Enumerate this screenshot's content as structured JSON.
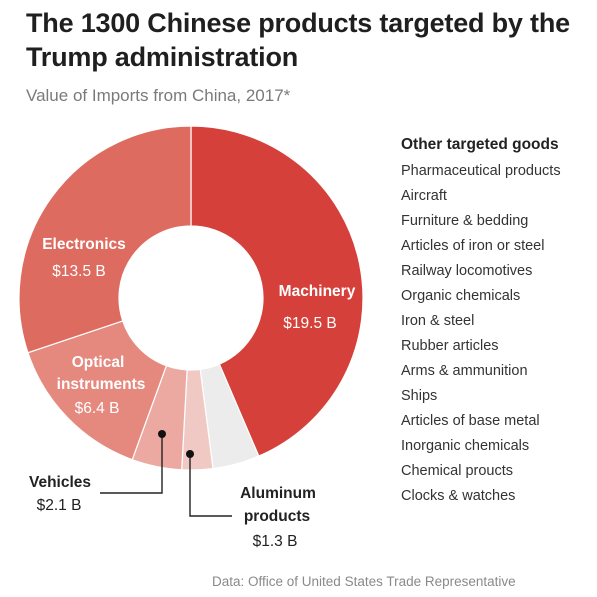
{
  "title": "The 1300 Chinese products targeted by the Trump administration",
  "subtitle": "Value of Imports from China, 2017*",
  "source": "Data: Office of United States Trade Representative",
  "colors": {
    "machinery": "#d6403a",
    "electronics": "#dd6b5f",
    "optical": "#e5897f",
    "vehicles": "#eba9a2",
    "aluminum": "#f1c9c4",
    "other": "#ececec"
  },
  "chart_data": {
    "type": "pie",
    "title": "The 1300 Chinese products targeted by the Trump administration",
    "subtitle": "Value of Imports from China, 2017*",
    "unit": "B",
    "slices": [
      {
        "id": "machinery",
        "name": "Machinery",
        "value_label": "$19.5 B",
        "value": 19.5,
        "color": "#d6403a"
      },
      {
        "id": "aluminum",
        "name": "Aluminum products",
        "value_label": "$1.3 B",
        "value": 1.3,
        "color": "#f1c9c4"
      },
      {
        "id": "vehicles",
        "name": "Vehicles",
        "value_label": "$2.1 B",
        "value": 2.1,
        "color": "#eba9a2"
      },
      {
        "id": "optical",
        "name": "Optical instruments",
        "value_label": "$6.4 B",
        "value": 6.4,
        "color": "#e5897f"
      },
      {
        "id": "electronics",
        "name": "Electronics",
        "value_label": "$13.5 B",
        "value": 13.5,
        "color": "#dd6b5f"
      }
    ],
    "other": {
      "name": "Other targeted goods",
      "color": "#ececec",
      "share_of_total": 0.044
    }
  },
  "other_goods": {
    "title": "Other targeted goods",
    "items": [
      "Pharmaceutical products",
      "Aircraft",
      "Furniture & bedding",
      "Articles of iron or steel",
      "Railway locomotives",
      "Organic chemicals",
      "Iron & steel",
      "Rubber articles",
      "Arms & ammunition",
      "Ships",
      "Articles of base metal",
      "Inorganic chemicals",
      "Chemical proucts",
      "Clocks & watches"
    ]
  },
  "labels": {
    "machinery": {
      "name_lines": [
        "Machinery"
      ],
      "value": "$19.5 B"
    },
    "electronics": {
      "name_lines": [
        "Electronics"
      ],
      "value": "$13.5 B"
    },
    "optical": {
      "name_lines": [
        "Optical",
        "instruments"
      ],
      "value": "$6.4 B"
    },
    "vehicles": {
      "name_lines": [
        "Vehicles"
      ],
      "value": "$2.1 B"
    },
    "aluminum": {
      "name_lines": [
        "Aluminum",
        "products"
      ],
      "value": "$1.3 B"
    }
  }
}
